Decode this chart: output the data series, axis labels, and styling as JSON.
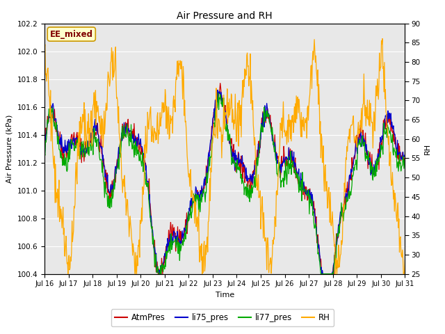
{
  "title": "Air Pressure and RH",
  "xlabel": "Time",
  "ylabel_left": "Air Pressure (kPa)",
  "ylabel_right": "RH",
  "label_box": "EE_mixed",
  "ylim_left": [
    100.4,
    102.2
  ],
  "ylim_right": [
    25,
    90
  ],
  "yticks_left": [
    100.4,
    100.6,
    100.8,
    101.0,
    101.2,
    101.4,
    101.6,
    101.8,
    102.0,
    102.2
  ],
  "yticks_right": [
    25,
    30,
    35,
    40,
    45,
    50,
    55,
    60,
    65,
    70,
    75,
    80,
    85,
    90
  ],
  "xtick_labels": [
    "Jul 16",
    "Jul 17",
    "Jul 18",
    "Jul 19",
    "Jul 20",
    "Jul 21",
    "Jul 22",
    "Jul 23",
    "Jul 24",
    "Jul 25",
    "Jul 26",
    "Jul 27",
    "Jul 28",
    "Jul 29",
    "Jul 30",
    "Jul 31"
  ],
  "colors": {
    "AtmPres": "#cc0000",
    "li75_pres": "#0000cc",
    "li77_pres": "#00aa00",
    "RH": "#ffaa00"
  },
  "bg_color": "#e8e8e8",
  "fig_bg": "#ffffff",
  "n_points": 721,
  "seed": 42
}
